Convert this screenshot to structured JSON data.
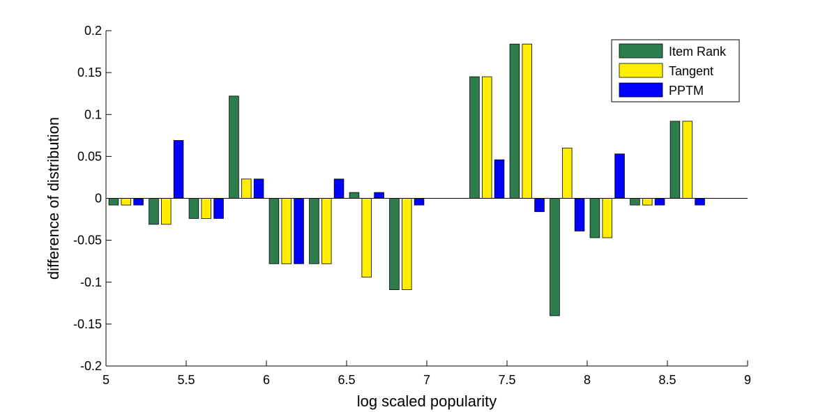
{
  "chart_data": {
    "type": "bar",
    "xlabel": "log scaled popularity",
    "ylabel": "difference of distribution",
    "xlim": [
      5,
      9
    ],
    "ylim": [
      -0.2,
      0.2
    ],
    "x_ticks": [
      "5",
      "5.5",
      "6",
      "6.5",
      "7",
      "7.5",
      "8",
      "8.5",
      "9"
    ],
    "y_ticks": [
      "-0.2",
      "-0.15",
      "-0.1",
      "-0.05",
      "0",
      "0.05",
      "0.1",
      "0.15",
      "0.2"
    ],
    "x": [
      5.125,
      5.375,
      5.625,
      5.875,
      6.125,
      6.375,
      6.625,
      6.875,
      7.125,
      7.375,
      7.625,
      7.875,
      8.125,
      8.375,
      8.625
    ],
    "series": [
      {
        "name": "Item Rank",
        "color": "#2e7d4f",
        "values": [
          -0.008,
          -0.031,
          -0.024,
          0.122,
          -0.078,
          -0.078,
          0.007,
          -0.109,
          0,
          0.145,
          0.184,
          -0.14,
          -0.047,
          -0.008,
          0.092
        ]
      },
      {
        "name": "Tangent",
        "color": "#ffee00",
        "values": [
          -0.008,
          -0.031,
          -0.024,
          0.023,
          -0.078,
          -0.078,
          -0.094,
          -0.109,
          0,
          0.145,
          0.184,
          0.06,
          -0.047,
          -0.008,
          0.092
        ]
      },
      {
        "name": "PPTM",
        "color": "#0000ff",
        "values": [
          -0.008,
          0.069,
          -0.024,
          0.023,
          -0.078,
          0.023,
          0.007,
          -0.008,
          0,
          0.046,
          -0.016,
          -0.039,
          0.053,
          -0.008,
          -0.008
        ]
      }
    ],
    "legend_position": "top-right",
    "grid": false
  }
}
